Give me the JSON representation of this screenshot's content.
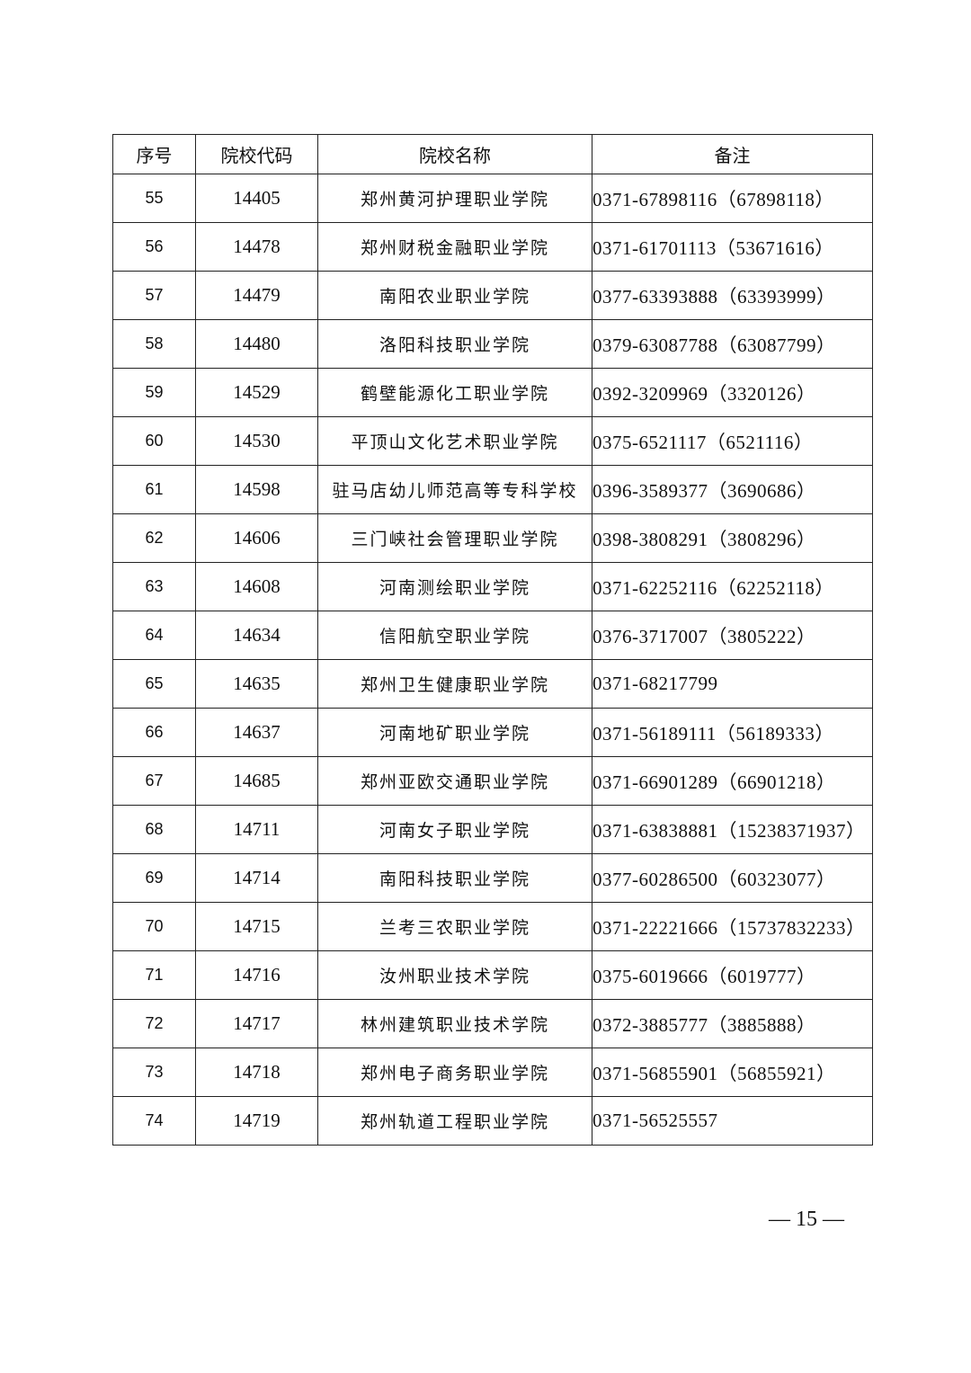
{
  "table": {
    "headers": [
      "序号",
      "院校代码",
      "院校名称",
      "备注"
    ],
    "rows": [
      [
        "55",
        "14405",
        "郑州黄河护理职业学院",
        "0371-67898116（67898118）"
      ],
      [
        "56",
        "14478",
        "郑州财税金融职业学院",
        "0371-61701113（53671616）"
      ],
      [
        "57",
        "14479",
        "南阳农业职业学院",
        "0377-63393888（63393999）"
      ],
      [
        "58",
        "14480",
        "洛阳科技职业学院",
        "0379-63087788（63087799）"
      ],
      [
        "59",
        "14529",
        "鹤壁能源化工职业学院",
        "0392-3209969（3320126）"
      ],
      [
        "60",
        "14530",
        "平顶山文化艺术职业学院",
        "0375-6521117（6521116）"
      ],
      [
        "61",
        "14598",
        "驻马店幼儿师范高等专科学校",
        "0396-3589377（3690686）"
      ],
      [
        "62",
        "14606",
        "三门峡社会管理职业学院",
        "0398-3808291（3808296）"
      ],
      [
        "63",
        "14608",
        "河南测绘职业学院",
        "0371-62252116（62252118）"
      ],
      [
        "64",
        "14634",
        "信阳航空职业学院",
        "0376-3717007（3805222）"
      ],
      [
        "65",
        "14635",
        "郑州卫生健康职业学院",
        "0371-68217799"
      ],
      [
        "66",
        "14637",
        "河南地矿职业学院",
        "0371-56189111（56189333）"
      ],
      [
        "67",
        "14685",
        "郑州亚欧交通职业学院",
        "0371-66901289（66901218）"
      ],
      [
        "68",
        "14711",
        "河南女子职业学院",
        "0371-63838881（15238371937）"
      ],
      [
        "69",
        "14714",
        "南阳科技职业学院",
        "0377-60286500（60323077）"
      ],
      [
        "70",
        "14715",
        "兰考三农职业学院",
        "0371-22221666（15737832233）"
      ],
      [
        "71",
        "14716",
        "汝州职业技术学院",
        "0375-6019666（6019777）"
      ],
      [
        "72",
        "14717",
        "林州建筑职业技术学院",
        "0372-3885777（3885888）"
      ],
      [
        "73",
        "14718",
        "郑州电子商务职业学院",
        "0371-56855901（56855921）"
      ],
      [
        "74",
        "14719",
        "郑州轨道工程职业学院",
        "0371-56525557"
      ]
    ]
  },
  "footer": {
    "page_number": "— 15 —"
  }
}
